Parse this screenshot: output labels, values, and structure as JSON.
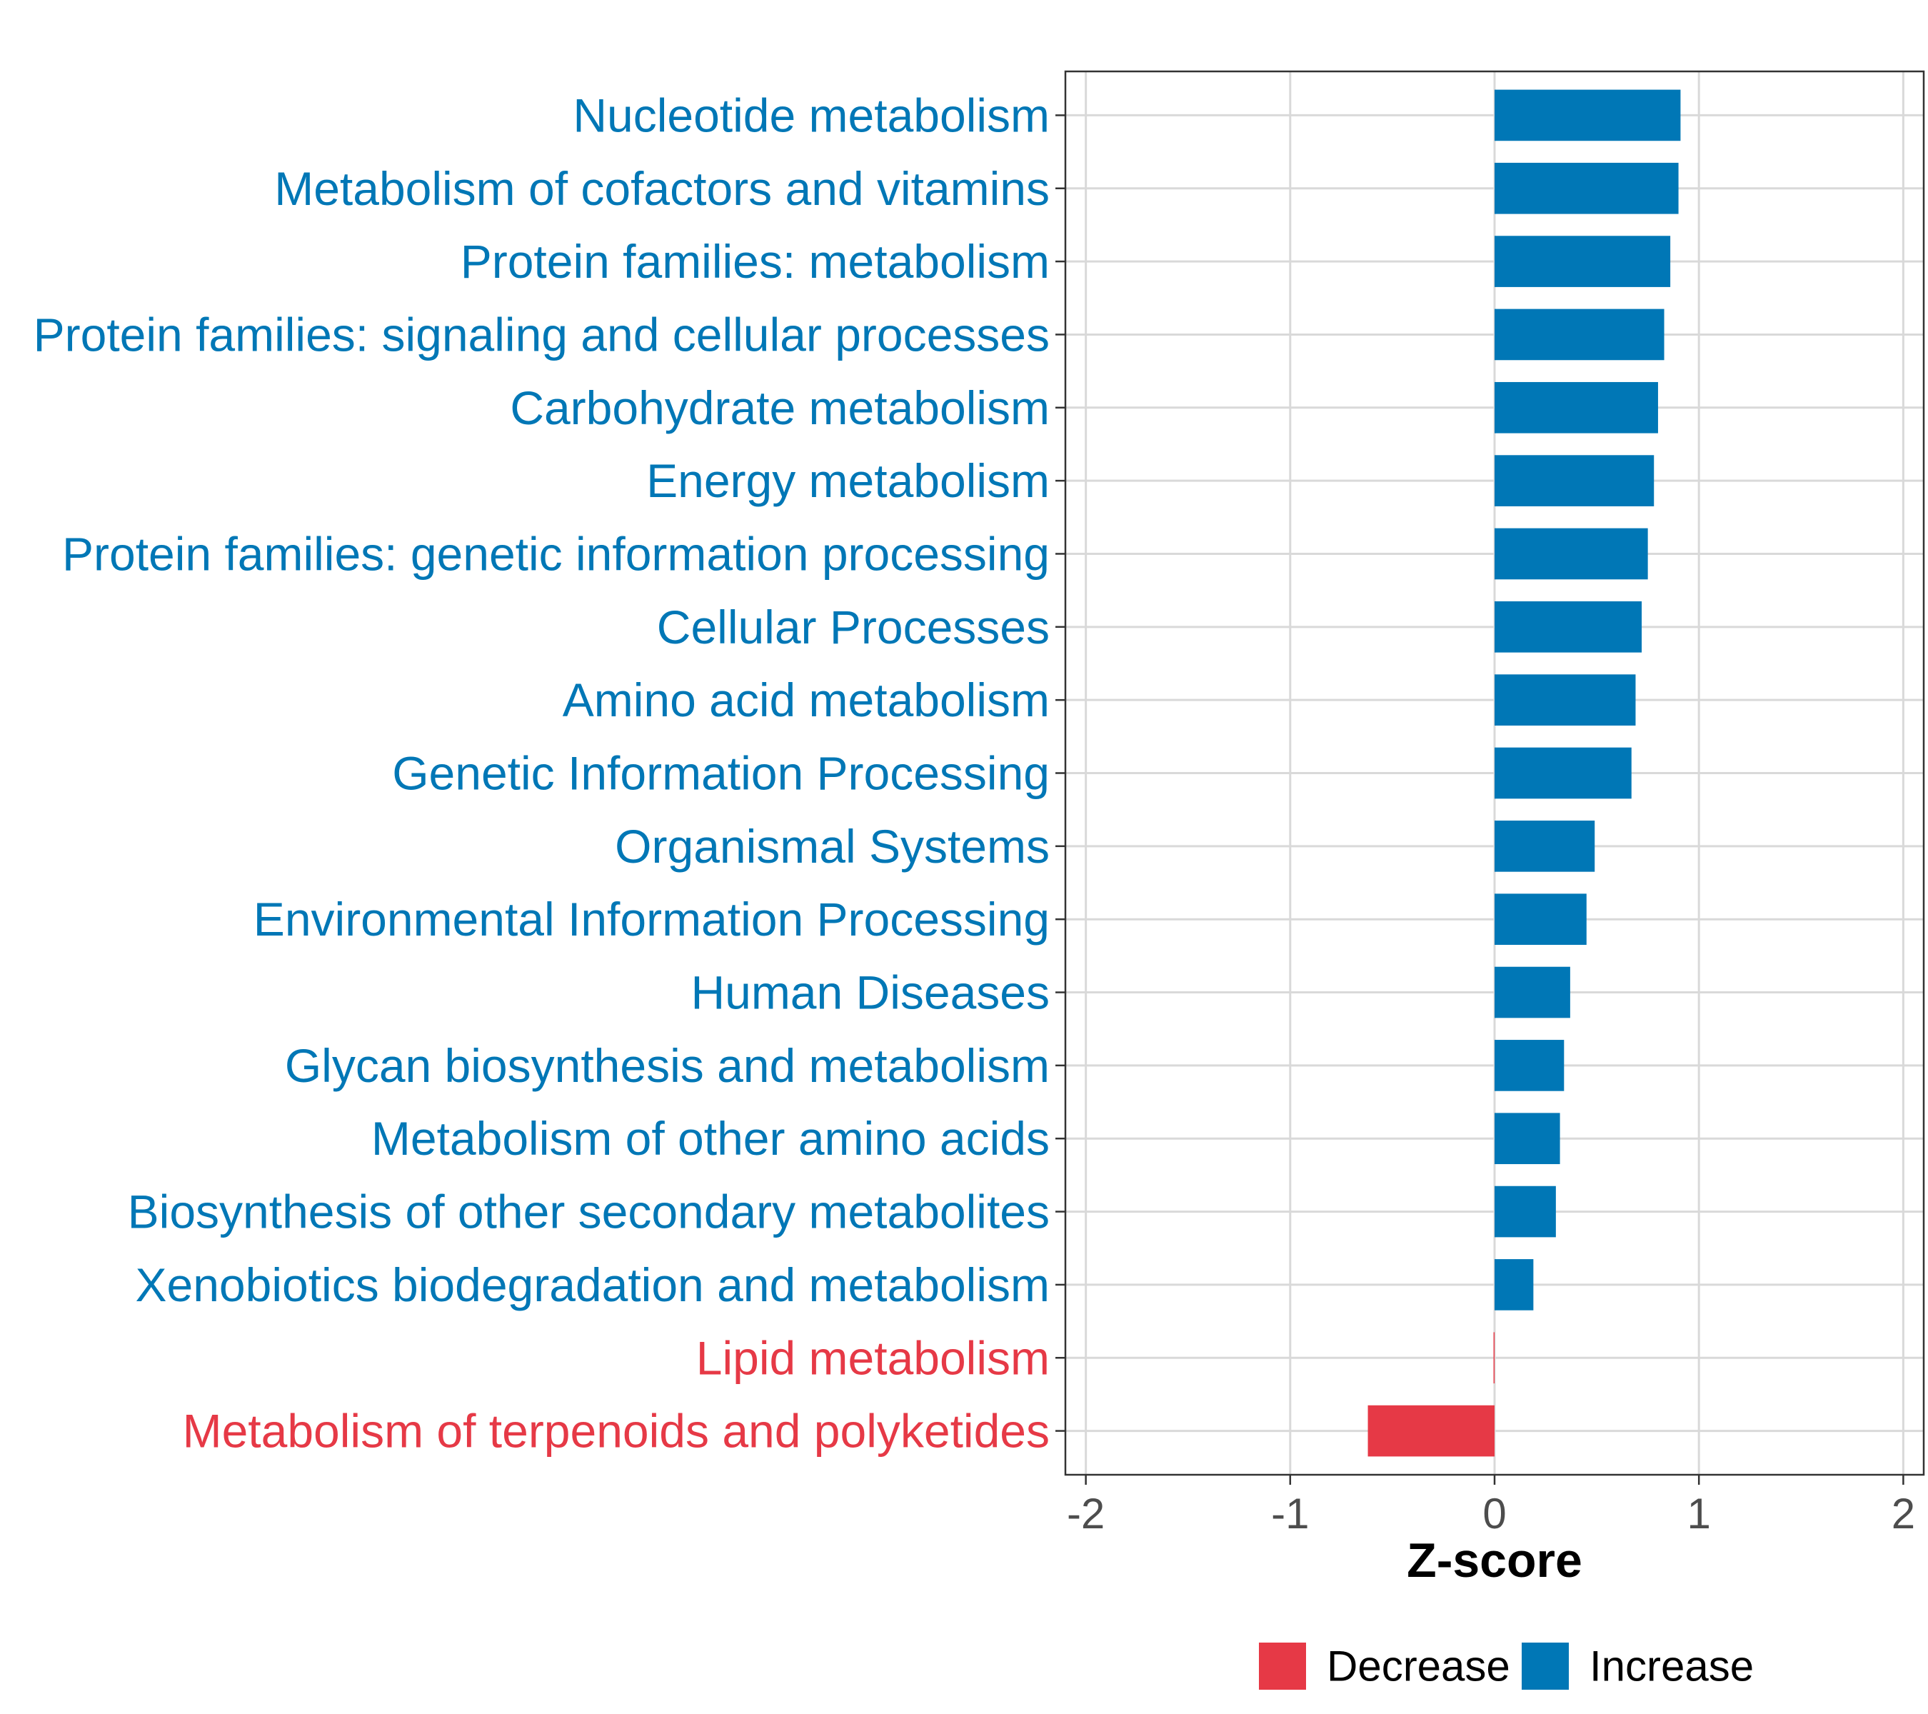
{
  "chart_data": {
    "type": "bar",
    "orientation": "horizontal",
    "categories": [
      "Nucleotide metabolism",
      "Metabolism of cofactors and vitamins",
      "Protein families: metabolism",
      "Protein families: signaling and cellular processes",
      "Carbohydrate metabolism",
      "Energy metabolism",
      "Protein families: genetic information processing",
      "Cellular Processes",
      "Amino acid metabolism",
      "Genetic Information Processing",
      "Organismal Systems",
      "Environmental Information Processing",
      "Human Diseases",
      "Glycan biosynthesis and metabolism",
      "Metabolism of other amino acids",
      "Biosynthesis of other secondary metabolites",
      "Xenobiotics biodegradation and metabolism",
      "Lipid metabolism",
      "Metabolism of terpenoids and polyketides"
    ],
    "values": [
      0.91,
      0.9,
      0.86,
      0.83,
      0.8,
      0.78,
      0.75,
      0.72,
      0.69,
      0.67,
      0.49,
      0.45,
      0.37,
      0.34,
      0.32,
      0.3,
      0.19,
      -0.005,
      -0.62
    ],
    "groups": [
      "Increase",
      "Increase",
      "Increase",
      "Increase",
      "Increase",
      "Increase",
      "Increase",
      "Increase",
      "Increase",
      "Increase",
      "Increase",
      "Increase",
      "Increase",
      "Increase",
      "Increase",
      "Increase",
      "Increase",
      "Decrease",
      "Decrease"
    ],
    "xlabel": "Z-score",
    "ylabel": "",
    "xlim": [
      -2.1,
      2.1
    ],
    "xticks": [
      -2,
      -1,
      0,
      1,
      2
    ],
    "xtick_labels": [
      "-2",
      "-1",
      "0",
      "1",
      "2"
    ],
    "grid": true,
    "legend": {
      "position": "bottom",
      "items": [
        {
          "label": "Decrease",
          "color": "#E63946"
        },
        {
          "label": "Increase",
          "color": "#0077B6"
        }
      ]
    },
    "colors": {
      "Decrease": "#E63946",
      "Increase": "#0077B6"
    }
  }
}
